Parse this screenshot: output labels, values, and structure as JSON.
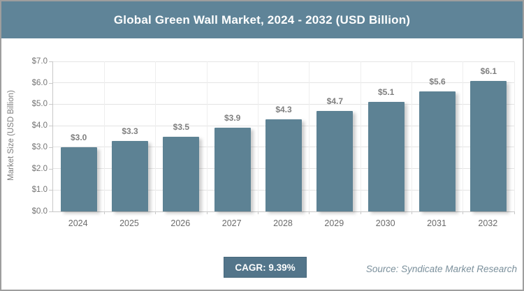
{
  "header": {
    "title": "Global Green Wall Market, 2024 - 2032 (USD Billion)"
  },
  "chart_data": {
    "type": "bar",
    "title": "Global Green Wall Market, 2024 - 2032 (USD Billion)",
    "categories": [
      "2024",
      "2025",
      "2026",
      "2027",
      "2028",
      "2029",
      "2030",
      "2031",
      "2032"
    ],
    "values": [
      3.0,
      3.3,
      3.5,
      3.9,
      4.3,
      4.7,
      5.1,
      5.6,
      6.1
    ],
    "bar_labels": [
      "$3.0",
      "$3.3",
      "$3.5",
      "$3.9",
      "$4.3",
      "$4.7",
      "$5.1",
      "$5.6",
      "$6.1"
    ],
    "xlabel": "",
    "ylabel": "Market Size (USD Billion)",
    "ylim": [
      0,
      7
    ],
    "ytick_labels": [
      "$0.0",
      "$1.0",
      "$2.0",
      "$3.0",
      "$4.0",
      "$5.0",
      "$6.0",
      "$7.0"
    ],
    "grid": true,
    "legend": "none",
    "bar_color": "#5d8294",
    "header_color": "#5f8498"
  },
  "footer": {
    "cagr_label": "CAGR: 9.39%",
    "source": "Source: Syndicate Market Research"
  }
}
